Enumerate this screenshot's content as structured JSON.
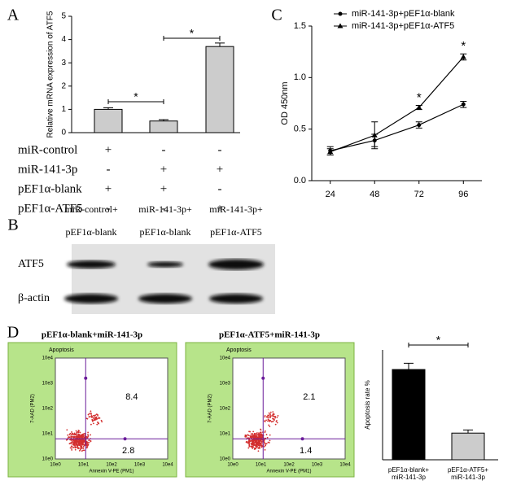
{
  "chart_data": [
    {
      "type": "bar",
      "panel": "A",
      "ylabel": "Relative mRNA expression of ATF5",
      "categories": [
        null,
        null,
        null
      ],
      "values": [
        1.0,
        0.5,
        3.7
      ],
      "errors": [
        0.07,
        0.06,
        0.15
      ],
      "color": "#cccccc",
      "ylim": [
        0,
        5
      ],
      "yticks": [
        0,
        1,
        2,
        3,
        4,
        5
      ],
      "annotations": [
        "*",
        "*"
      ]
    },
    {
      "type": "line",
      "panel": "C",
      "ylabel": "OD 450nm",
      "x": [
        24,
        48,
        72,
        96
      ],
      "xlim": [
        14,
        106
      ],
      "xticks": [
        24,
        48,
        72,
        96
      ],
      "ylim": [
        0,
        1.5
      ],
      "yticks": [
        {
          "value": 0,
          "label": "0.0"
        },
        0.5,
        {
          "value": 1,
          "label": "1.0"
        },
        1.5
      ],
      "series": [
        {
          "name": "miR-141-3p+pEF1α-blank",
          "color": "#000000",
          "marker": "circle",
          "values": [
            0.29,
            0.39,
            0.54,
            0.74
          ],
          "errors": [
            0.04,
            0.06,
            0.03,
            0.03
          ]
        },
        {
          "name": "miR-141-3p+pEF1α-ATF5",
          "color": "#000000",
          "marker": "triangle",
          "values": [
            0.28,
            0.44,
            0.71,
            1.2
          ],
          "errors": [
            0.03,
            0.13,
            0.02,
            0.03
          ]
        }
      ],
      "annotations": [
        "*",
        "*"
      ]
    },
    {
      "type": "bar",
      "panel": "D",
      "ylabel": "Apoptosis rate %",
      "categories": [
        "pEF1α-blank+\nmiR-141-3p",
        "pEF1α-ATF5+\nmiR-141-3p"
      ],
      "values": [
        11.5,
        3.4
      ],
      "errors": [
        0.8,
        0.4
      ],
      "colors": [
        "#000000",
        "#cccccc"
      ],
      "ylim": [
        0,
        14
      ],
      "annotations": [
        "*"
      ]
    }
  ],
  "treatment_table": {
    "rows": [
      {
        "label": "miR-control",
        "cells": [
          "+",
          "-",
          "-"
        ]
      },
      {
        "label": "miR-141-3p",
        "cells": [
          "-",
          "+",
          "+"
        ]
      },
      {
        "label": "pEF1α-blank",
        "cells": [
          "+",
          "+",
          "-"
        ]
      },
      {
        "label": "pEF1α-ATF5",
        "cells": [
          "-",
          "-",
          "+"
        ]
      }
    ]
  },
  "blot": {
    "panel": "B",
    "lanes": [
      [
        "miR-control+",
        "pEF1α-blank"
      ],
      [
        "miR-141-3p+",
        "pEF1α-blank"
      ],
      [
        "miR-141-3p+",
        "pEF1α-ATF5"
      ]
    ],
    "rows": [
      "ATF5",
      "β-actin"
    ]
  },
  "flow_plots": [
    {
      "title": "pEF1α-blank+miR-141-3p",
      "header": "Apoptosis",
      "ylabel": "7-AAD (PM2)",
      "xlabel": "Annexin V-PE (PM1)",
      "ticks": [
        "10e0",
        "10e1",
        "10e2",
        "10e3",
        "10e4"
      ],
      "upper_right": "8.4",
      "lower_right": "2.8"
    },
    {
      "title": "pEF1α-ATF5+miR-141-3p",
      "header": "Apoptosis",
      "ylabel": "7-AAD (PM2)",
      "xlabel": "Annexin V-PE (PM1)",
      "ticks": [
        "10e0",
        "10e1",
        "10e2",
        "10e3",
        "10e4"
      ],
      "upper_right": "2.1",
      "lower_right": "1.4"
    }
  ]
}
